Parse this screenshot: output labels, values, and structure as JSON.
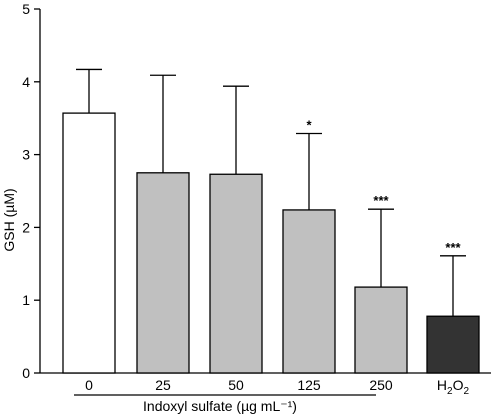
{
  "chart_data": {
    "type": "bar",
    "categories": [
      "0",
      "25",
      "50",
      "125",
      "250",
      "H2O2"
    ],
    "values": [
      3.57,
      2.75,
      2.73,
      2.24,
      1.18,
      0.78
    ],
    "errors": [
      0.6,
      1.34,
      1.21,
      1.05,
      1.07,
      0.83
    ],
    "significance": [
      "",
      "",
      "",
      "*",
      "***",
      "***"
    ],
    "bar_colors": [
      "#ffffff",
      "#c0c0c0",
      "#c0c0c0",
      "#c0c0c0",
      "#c0c0c0",
      "#333333"
    ],
    "ylabel": "GSH (µM)",
    "xlabel": "Indoxyl sulfate (µg mL⁻¹)",
    "yticks": [
      "0",
      "1",
      "2",
      "3",
      "4",
      "5"
    ],
    "ylim": [
      0,
      5
    ],
    "grid": false,
    "legend": "none"
  }
}
